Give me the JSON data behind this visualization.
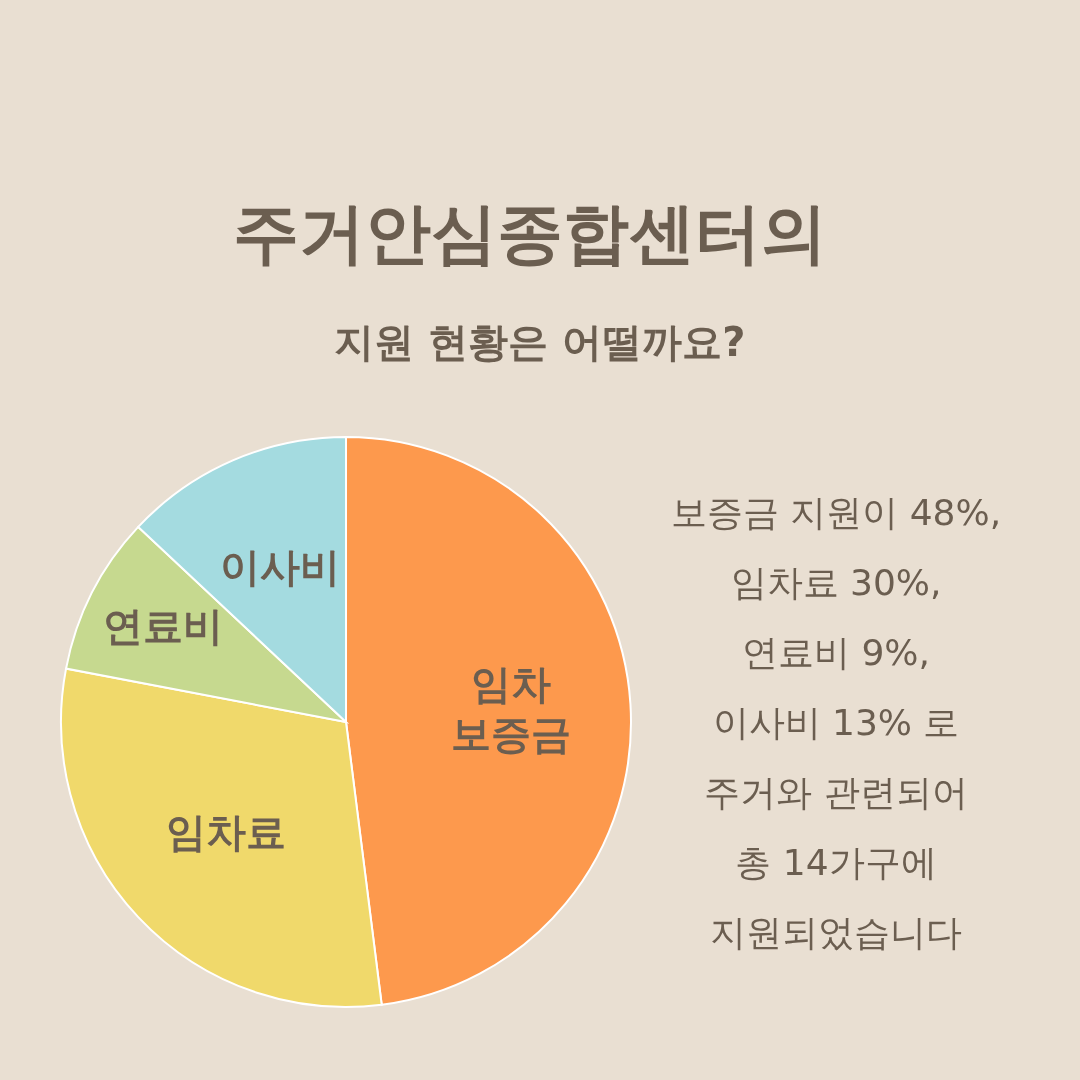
{
  "chart_data": {
    "type": "pie",
    "title": "주거안심종합센터의",
    "subtitle": "지원 현황은 어떨까요?",
    "categories": [
      "임차 보증금",
      "임차료",
      "연료비",
      "이사비"
    ],
    "values": [
      48,
      30,
      9,
      13
    ],
    "colors": [
      "#fd994d",
      "#f0d96b",
      "#c6d98f",
      "#a4dbe0"
    ],
    "annotations": [
      "보증금 지원이 48%,",
      "임차료 30%,",
      "연료비 9%,",
      "이사비 13% 로",
      "주거와 관련되어",
      "총 14가구에",
      "지원되었습니다"
    ]
  }
}
